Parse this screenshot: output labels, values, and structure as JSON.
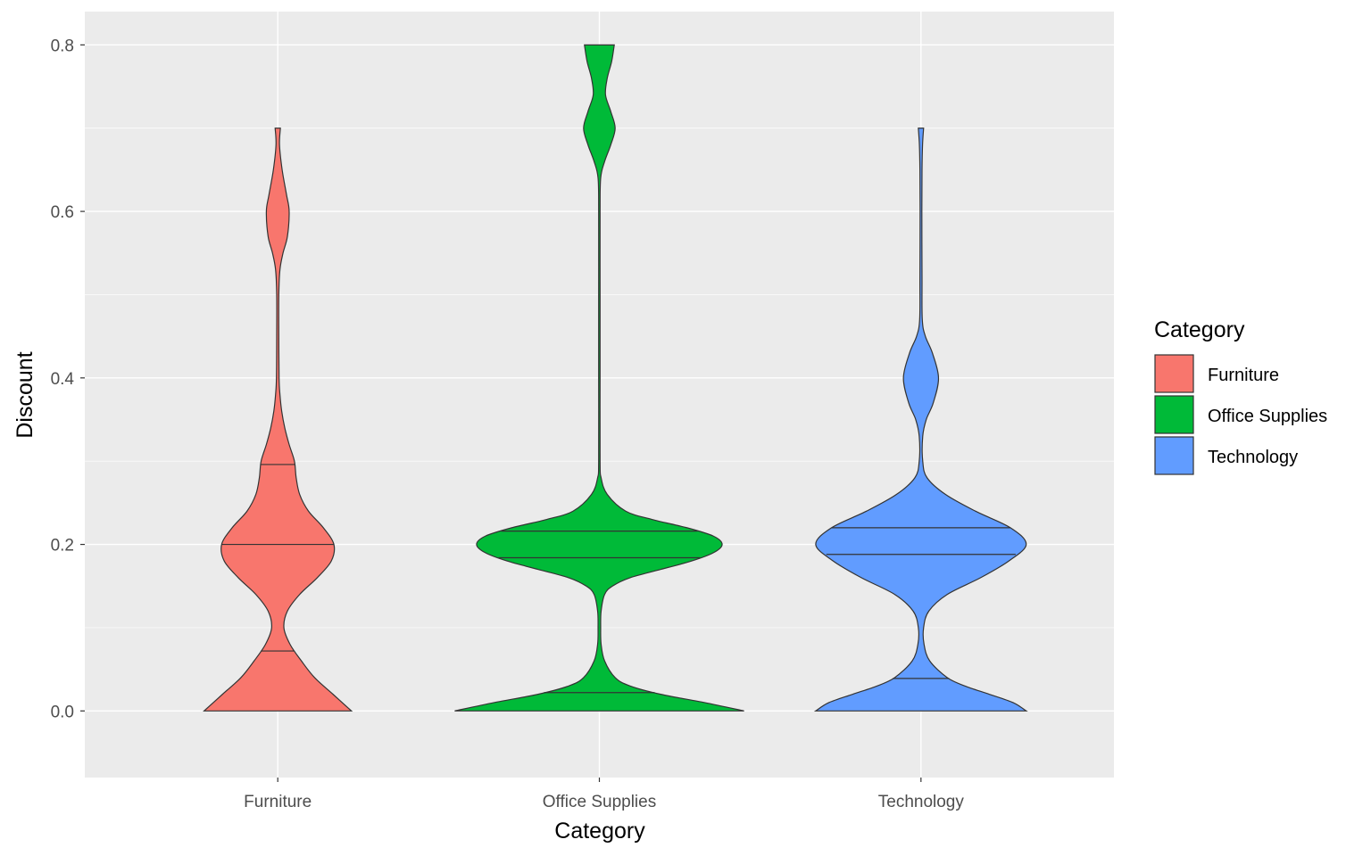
{
  "chart_data": {
    "type": "violin",
    "xlabel": "Category",
    "ylabel": "Discount",
    "ylim": [
      -0.08,
      0.84
    ],
    "y_ticks": [
      {
        "value": 0.0,
        "label": "0.0"
      },
      {
        "value": 0.2,
        "label": "0.2"
      },
      {
        "value": 0.4,
        "label": "0.4"
      },
      {
        "value": 0.6,
        "label": "0.6"
      },
      {
        "value": 0.8,
        "label": "0.8"
      }
    ],
    "categories": [
      "Furniture",
      "Office Supplies",
      "Technology"
    ],
    "grid": true,
    "legend": {
      "title": "Category",
      "position": "right",
      "entries": [
        {
          "label": "Furniture",
          "color": "#F8766D"
        },
        {
          "label": "Office Supplies",
          "color": "#00BA38"
        },
        {
          "label": "Technology",
          "color": "#619CFF"
        }
      ]
    },
    "series": [
      {
        "category": "Furniture",
        "color": "#F8766D",
        "draw_quantiles": [
          0.072,
          0.2,
          0.296
        ],
        "density": [
          {
            "y": 0.0,
            "w": 0.84
          },
          {
            "y": 0.02,
            "w": 0.63
          },
          {
            "y": 0.04,
            "w": 0.42
          },
          {
            "y": 0.06,
            "w": 0.27
          },
          {
            "y": 0.08,
            "w": 0.14
          },
          {
            "y": 0.1,
            "w": 0.07
          },
          {
            "y": 0.12,
            "w": 0.11
          },
          {
            "y": 0.14,
            "w": 0.25
          },
          {
            "y": 0.16,
            "w": 0.45
          },
          {
            "y": 0.18,
            "w": 0.61
          },
          {
            "y": 0.2,
            "w": 0.64
          },
          {
            "y": 0.22,
            "w": 0.52
          },
          {
            "y": 0.24,
            "w": 0.35
          },
          {
            "y": 0.26,
            "w": 0.25
          },
          {
            "y": 0.28,
            "w": 0.21
          },
          {
            "y": 0.3,
            "w": 0.19
          },
          {
            "y": 0.32,
            "w": 0.13
          },
          {
            "y": 0.34,
            "w": 0.08
          },
          {
            "y": 0.36,
            "w": 0.045
          },
          {
            "y": 0.38,
            "w": 0.025
          },
          {
            "y": 0.4,
            "w": 0.015
          },
          {
            "y": 0.45,
            "w": 0.012
          },
          {
            "y": 0.5,
            "w": 0.012
          },
          {
            "y": 0.53,
            "w": 0.025
          },
          {
            "y": 0.55,
            "w": 0.06
          },
          {
            "y": 0.57,
            "w": 0.11
          },
          {
            "y": 0.6,
            "w": 0.13
          },
          {
            "y": 0.62,
            "w": 0.1
          },
          {
            "y": 0.65,
            "w": 0.05
          },
          {
            "y": 0.68,
            "w": 0.02
          },
          {
            "y": 0.7,
            "w": 0.03
          }
        ]
      },
      {
        "category": "Office Supplies",
        "color": "#00BA38",
        "draw_quantiles": [
          0.022,
          0.184,
          0.216
        ],
        "density": [
          {
            "y": 0.0,
            "w": 1.65
          },
          {
            "y": 0.01,
            "w": 1.2
          },
          {
            "y": 0.02,
            "w": 0.7
          },
          {
            "y": 0.03,
            "w": 0.35
          },
          {
            "y": 0.04,
            "w": 0.18
          },
          {
            "y": 0.06,
            "w": 0.06
          },
          {
            "y": 0.08,
            "w": 0.02
          },
          {
            "y": 0.1,
            "w": 0.015
          },
          {
            "y": 0.12,
            "w": 0.02
          },
          {
            "y": 0.14,
            "w": 0.06
          },
          {
            "y": 0.15,
            "w": 0.15
          },
          {
            "y": 0.16,
            "w": 0.35
          },
          {
            "y": 0.17,
            "w": 0.7
          },
          {
            "y": 0.18,
            "w": 1.05
          },
          {
            "y": 0.19,
            "w": 1.3
          },
          {
            "y": 0.2,
            "w": 1.4
          },
          {
            "y": 0.21,
            "w": 1.3
          },
          {
            "y": 0.22,
            "w": 1.0
          },
          {
            "y": 0.23,
            "w": 0.6
          },
          {
            "y": 0.24,
            "w": 0.3
          },
          {
            "y": 0.26,
            "w": 0.09
          },
          {
            "y": 0.28,
            "w": 0.02
          },
          {
            "y": 0.3,
            "w": 0.008
          },
          {
            "y": 0.4,
            "w": 0.008
          },
          {
            "y": 0.5,
            "w": 0.008
          },
          {
            "y": 0.6,
            "w": 0.008
          },
          {
            "y": 0.64,
            "w": 0.015
          },
          {
            "y": 0.66,
            "w": 0.06
          },
          {
            "y": 0.68,
            "w": 0.13
          },
          {
            "y": 0.7,
            "w": 0.18
          },
          {
            "y": 0.72,
            "w": 0.13
          },
          {
            "y": 0.74,
            "w": 0.07
          },
          {
            "y": 0.76,
            "w": 0.09
          },
          {
            "y": 0.78,
            "w": 0.14
          },
          {
            "y": 0.8,
            "w": 0.17
          }
        ]
      },
      {
        "category": "Technology",
        "color": "#619CFF",
        "draw_quantiles": [
          0.039,
          0.188,
          0.22
        ],
        "density": [
          {
            "y": 0.0,
            "w": 1.2
          },
          {
            "y": 0.01,
            "w": 1.05
          },
          {
            "y": 0.02,
            "w": 0.78
          },
          {
            "y": 0.03,
            "w": 0.5
          },
          {
            "y": 0.04,
            "w": 0.3
          },
          {
            "y": 0.06,
            "w": 0.1
          },
          {
            "y": 0.08,
            "w": 0.035
          },
          {
            "y": 0.1,
            "w": 0.03
          },
          {
            "y": 0.12,
            "w": 0.09
          },
          {
            "y": 0.14,
            "w": 0.3
          },
          {
            "y": 0.16,
            "w": 0.68
          },
          {
            "y": 0.18,
            "w": 1.0
          },
          {
            "y": 0.2,
            "w": 1.2
          },
          {
            "y": 0.22,
            "w": 1.02
          },
          {
            "y": 0.24,
            "w": 0.62
          },
          {
            "y": 0.26,
            "w": 0.28
          },
          {
            "y": 0.28,
            "w": 0.07
          },
          {
            "y": 0.3,
            "w": 0.02
          },
          {
            "y": 0.33,
            "w": 0.02
          },
          {
            "y": 0.35,
            "w": 0.06
          },
          {
            "y": 0.37,
            "w": 0.14
          },
          {
            "y": 0.4,
            "w": 0.2
          },
          {
            "y": 0.43,
            "w": 0.13
          },
          {
            "y": 0.45,
            "w": 0.05
          },
          {
            "y": 0.47,
            "w": 0.015
          },
          {
            "y": 0.52,
            "w": 0.012
          },
          {
            "y": 0.6,
            "w": 0.01
          },
          {
            "y": 0.65,
            "w": 0.012
          },
          {
            "y": 0.68,
            "w": 0.018
          },
          {
            "y": 0.7,
            "w": 0.03
          }
        ]
      }
    ]
  }
}
